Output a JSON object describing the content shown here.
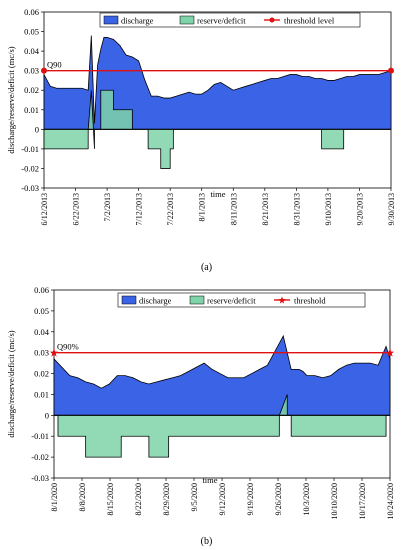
{
  "chart_data": [
    {
      "type": "area",
      "panel": "(a)",
      "ylabel": "discharge/reserve/deficit (mc/s)",
      "xlabel": "time",
      "ylim": [
        -0.03,
        0.06
      ],
      "yticks": [
        "0.06",
        "0.05",
        "0.04",
        "0.03",
        "0.02",
        "0.01",
        "0",
        "-0.01",
        "-0.02",
        "-0.03"
      ],
      "xticks": [
        "6/12/2013",
        "6/22/2013",
        "7/2/2013",
        "7/12/2013",
        "7/22/2013",
        "8/1/2013",
        "8/11/2013",
        "8/21/2013",
        "8/31/2013",
        "9/10/2013",
        "9/20/2013",
        "9/30/2013"
      ],
      "xrange_days": 110,
      "legend": [
        "discharge",
        "reserve/deficit",
        "threshold level"
      ],
      "legend_position": "top",
      "threshold_label": "Q90",
      "threshold": 0.03,
      "series": [
        {
          "name": "discharge",
          "color": "#3b63e6",
          "x": [
            0,
            1,
            2,
            4,
            6,
            8,
            10,
            12,
            14,
            15,
            16,
            17,
            18,
            19,
            20,
            22,
            24,
            26,
            28,
            30,
            31,
            32,
            34,
            36,
            38,
            40,
            42,
            44,
            46,
            48,
            50,
            52,
            54,
            56,
            58,
            60,
            62,
            64,
            66,
            68,
            70,
            72,
            74,
            76,
            78,
            80,
            82,
            84,
            86,
            88,
            90,
            92,
            94,
            96,
            98,
            100,
            102,
            104,
            106,
            108,
            110
          ],
          "values": [
            0.028,
            0.025,
            0.022,
            0.021,
            0.021,
            0.021,
            0.021,
            0.021,
            0.02,
            0.048,
            0.003,
            0.033,
            0.041,
            0.047,
            0.047,
            0.046,
            0.043,
            0.038,
            0.037,
            0.035,
            0.03,
            0.025,
            0.017,
            0.017,
            0.016,
            0.016,
            0.017,
            0.018,
            0.019,
            0.018,
            0.018,
            0.02,
            0.023,
            0.024,
            0.022,
            0.02,
            0.021,
            0.022,
            0.023,
            0.024,
            0.025,
            0.026,
            0.026,
            0.027,
            0.028,
            0.028,
            0.027,
            0.027,
            0.026,
            0.026,
            0.025,
            0.025,
            0.026,
            0.027,
            0.027,
            0.028,
            0.028,
            0.028,
            0.028,
            0.029,
            0.03
          ]
        },
        {
          "name": "reserve/deficit",
          "color": "#7fd3a8",
          "x": [
            0,
            14,
            14.01,
            15,
            16,
            16.01,
            18,
            18.01,
            22,
            22.01,
            24,
            24.01,
            28,
            28.01,
            30,
            30.01,
            33,
            33.01,
            37,
            37.01,
            40,
            40.01,
            41,
            41.01,
            88,
            88.01,
            95,
            95.01,
            102,
            102.01,
            110
          ],
          "values": [
            -0.01,
            -0.01,
            0,
            0.02,
            -0.01,
            0,
            0,
            0.02,
            0.02,
            0.01,
            0.01,
            0.01,
            0.01,
            0,
            0,
            0,
            0,
            -0.01,
            -0.01,
            -0.02,
            -0.02,
            -0.01,
            -0.01,
            0,
            0,
            -0.01,
            -0.01,
            0,
            0,
            0,
            0
          ]
        }
      ]
    },
    {
      "type": "area",
      "panel": "(b)",
      "ylabel": "discharge/reserve/deficit (mc/s)",
      "xlabel": "time",
      "ylim": [
        -0.03,
        0.06
      ],
      "yticks": [
        "0.06",
        "0.05",
        "0.04",
        "0.03",
        "0.02",
        "0.01",
        "0",
        "-0.01",
        "-0.02",
        "-0.03"
      ],
      "xticks": [
        "8/1/2020",
        "8/8/2020",
        "8/15/2020",
        "8/22/2020",
        "8/29/2020",
        "9/5/2020",
        "9/12/2020",
        "9/19/2020",
        "9/26/2020",
        "10/3/2020",
        "10/10/2020",
        "10/17/2020",
        "10/24/2020"
      ],
      "xrange_days": 85,
      "legend": [
        "discharge",
        "reserve/deficit",
        "threshold"
      ],
      "legend_position": "top",
      "threshold_label": "Q90%",
      "threshold": 0.03,
      "series": [
        {
          "name": "discharge",
          "color": "#3b63e6",
          "x": [
            0,
            2,
            4,
            6,
            8,
            10,
            12,
            14,
            16,
            18,
            20,
            22,
            24,
            26,
            28,
            30,
            32,
            34,
            36,
            38,
            40,
            42,
            44,
            46,
            48,
            50,
            52,
            54,
            56,
            58,
            60,
            62,
            63,
            64,
            66,
            68,
            70,
            72,
            74,
            76,
            78,
            80,
            82,
            84,
            85
          ],
          "values": [
            0.027,
            0.023,
            0.019,
            0.018,
            0.016,
            0.015,
            0.013,
            0.015,
            0.019,
            0.019,
            0.018,
            0.016,
            0.015,
            0.016,
            0.017,
            0.018,
            0.019,
            0.021,
            0.023,
            0.025,
            0.022,
            0.02,
            0.018,
            0.018,
            0.018,
            0.02,
            0.022,
            0.024,
            0.031,
            0.038,
            0.022,
            0.022,
            0.021,
            0.019,
            0.019,
            0.018,
            0.019,
            0.022,
            0.024,
            0.025,
            0.025,
            0.025,
            0.024,
            0.033,
            0.027
          ]
        },
        {
          "name": "reserve/deficit",
          "color": "#7fd3a8",
          "x": [
            0,
            1,
            1.01,
            8,
            8.01,
            17,
            17.01,
            24,
            24.01,
            29,
            29.01,
            57,
            57.01,
            59,
            59.01,
            60,
            60.01,
            84,
            84.01,
            85
          ],
          "values": [
            0,
            0,
            -0.01,
            -0.01,
            -0.02,
            -0.02,
            -0.01,
            -0.01,
            -0.02,
            -0.02,
            -0.01,
            -0.01,
            0,
            0.01,
            0,
            0,
            -0.01,
            -0.01,
            0,
            0
          ]
        }
      ]
    }
  ],
  "captions": {
    "a": "(a)",
    "b": "(b)"
  }
}
